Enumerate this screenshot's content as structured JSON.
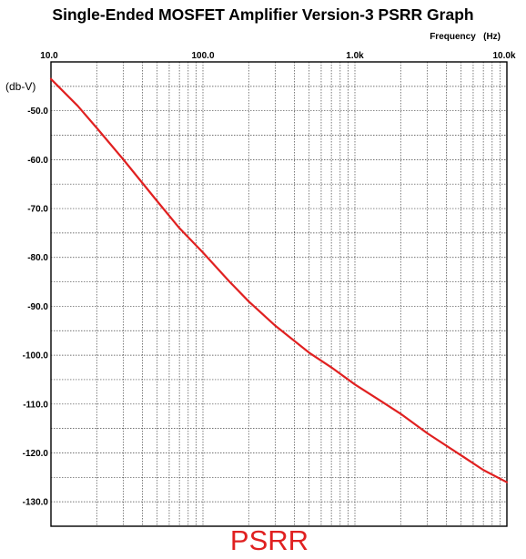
{
  "chart_data": {
    "type": "line",
    "title": "Single-Ended MOSFET Amplifier Version-3 PSRR Graph",
    "xlabel": "Frequency   (Hz)",
    "ylabel": "(db-V)",
    "caption": "PSRR",
    "x_scale": "log",
    "xlim": [
      10,
      10000
    ],
    "ylim": [
      -135,
      -40
    ],
    "grid": true,
    "x_tick_labels": [
      {
        "value": 10,
        "label": "10.0"
      },
      {
        "value": 100,
        "label": "100.0"
      },
      {
        "value": 1000,
        "label": "1.0k"
      },
      {
        "value": 10000,
        "label": "10.0k"
      }
    ],
    "y_tick_labels": [
      {
        "value": -50,
        "label": "-50.0"
      },
      {
        "value": -60,
        "label": "-60.0"
      },
      {
        "value": -70,
        "label": "-70.0"
      },
      {
        "value": -80,
        "label": "-80.0"
      },
      {
        "value": -90,
        "label": "-90.0"
      },
      {
        "value": -100,
        "label": "-100.0"
      },
      {
        "value": -110,
        "label": "-110.0"
      },
      {
        "value": -120,
        "label": "-120.0"
      },
      {
        "value": -130,
        "label": "-130.0"
      }
    ],
    "series": [
      {
        "color": "#e02020",
        "x": [
          10,
          15,
          20,
          30,
          50,
          70,
          100,
          150,
          200,
          300,
          500,
          700,
          1000,
          1500,
          2000,
          3000,
          5000,
          7000,
          10000
        ],
        "y": [
          -43.5,
          -49,
          -53.5,
          -60,
          -68.5,
          -74,
          -79,
          -85,
          -89,
          -94,
          -99.5,
          -102.5,
          -106,
          -109.5,
          -112,
          -116,
          -120.5,
          -123.5,
          -126
        ]
      }
    ]
  }
}
